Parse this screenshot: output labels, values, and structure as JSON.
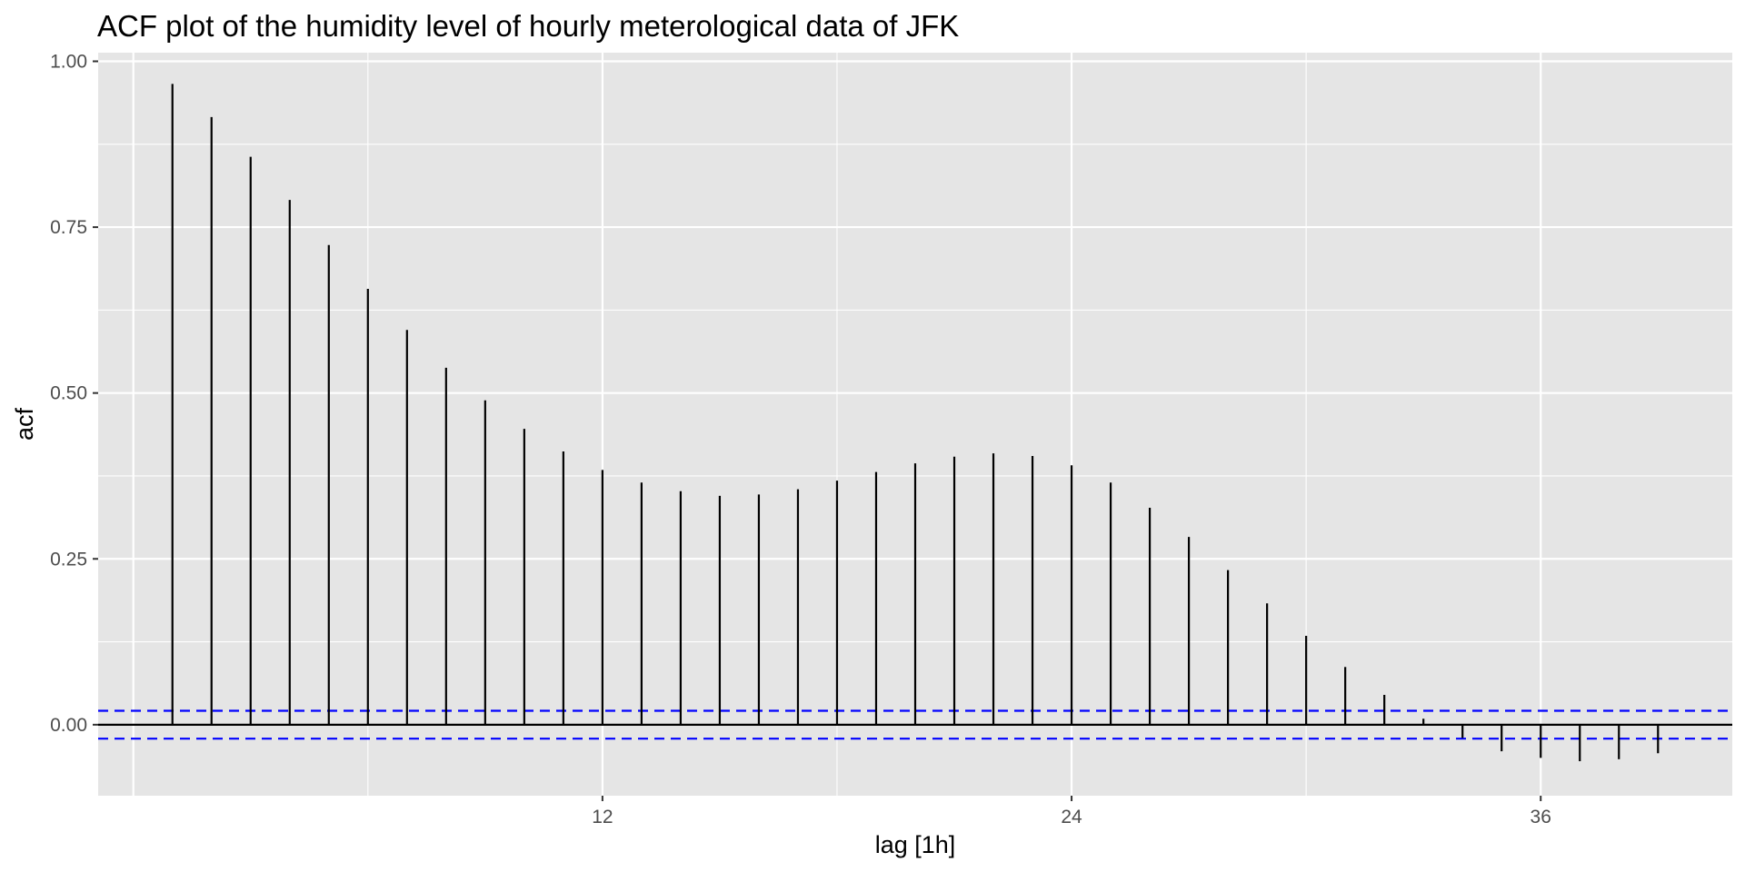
{
  "chart_data": {
    "type": "bar",
    "title": "ACF plot of the humidity level of hourly meterological data of JFK",
    "xlabel": "lag [1h]",
    "ylabel": "acf",
    "x": [
      1,
      2,
      3,
      4,
      5,
      6,
      7,
      8,
      9,
      10,
      11,
      12,
      13,
      14,
      15,
      16,
      17,
      18,
      19,
      20,
      21,
      22,
      23,
      24,
      25,
      26,
      27,
      28,
      29,
      30,
      31,
      32,
      33,
      34,
      35,
      36,
      37,
      38,
      39
    ],
    "values": [
      0.966,
      0.916,
      0.856,
      0.791,
      0.723,
      0.657,
      0.595,
      0.538,
      0.489,
      0.446,
      0.412,
      0.384,
      0.365,
      0.352,
      0.345,
      0.347,
      0.355,
      0.368,
      0.381,
      0.394,
      0.404,
      0.409,
      0.405,
      0.391,
      0.365,
      0.327,
      0.283,
      0.233,
      0.183,
      0.134,
      0.087,
      0.045,
      0.009,
      -0.02,
      -0.04,
      -0.05,
      -0.055,
      -0.052,
      -0.043
    ],
    "xlim": [
      -0.9,
      40.9
    ],
    "ylim": [
      -0.107,
      1.013
    ],
    "x_ticks": [
      12,
      24,
      36
    ],
    "x_tick_labels": [
      "12",
      "24",
      "36"
    ],
    "y_ticks": [
      0,
      0.25,
      0.5,
      0.75,
      1.0
    ],
    "y_tick_labels": [
      "0.00",
      "0.25",
      "0.50",
      "0.75",
      "1.00"
    ],
    "confidence_bound": 0.021,
    "grid": true,
    "colors": {
      "panel_background": "#e5e5e5",
      "grid": "#ffffff",
      "spike": "#000000",
      "zero_line": "#000000",
      "confidence": "#0000ff",
      "tick_label": "#4d4d4d"
    }
  }
}
